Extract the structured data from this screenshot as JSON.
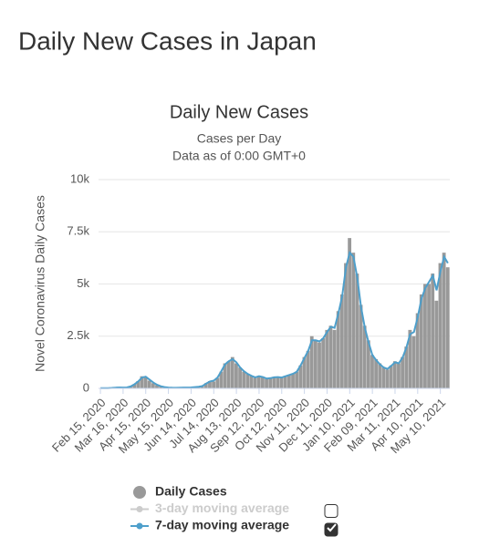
{
  "page_title": "Daily New Cases in Japan",
  "chart_data": {
    "type": "bar",
    "title": "Daily New Cases",
    "subtitle": [
      "Cases per Day",
      "Data as of 0:00 GMT+0"
    ],
    "y_label": "Novel Coronavirus Daily Cases",
    "categories": [
      "Feb 15, 2020",
      null,
      null,
      null,
      null,
      null,
      "Mar 16, 2020",
      null,
      null,
      null,
      null,
      null,
      "Apr 15, 2020",
      null,
      null,
      null,
      null,
      null,
      "May 15, 2020",
      null,
      null,
      null,
      null,
      null,
      "Jun 14, 2020",
      null,
      null,
      null,
      null,
      null,
      "Jul 14, 2020",
      null,
      null,
      null,
      null,
      null,
      "Aug 13, 2020",
      null,
      null,
      null,
      null,
      null,
      "Sep 12, 2020",
      null,
      null,
      null,
      null,
      null,
      "Oct 12, 2020",
      null,
      null,
      null,
      null,
      null,
      "Nov 11, 2020",
      null,
      null,
      null,
      null,
      null,
      "Dec 11, 2020",
      null,
      null,
      null,
      null,
      null,
      "Jan 10, 2021",
      null,
      null,
      null,
      null,
      null,
      "Feb 09, 2021",
      null,
      null,
      null,
      null,
      null,
      "Mar 11, 2021",
      null,
      null,
      null,
      null,
      null,
      "Apr 10, 2021",
      null,
      null,
      null,
      null,
      null,
      "May 10, 2021",
      null,
      null
    ],
    "series": [
      {
        "name": "Daily Cases",
        "color": "#999999",
        "kind": "bar",
        "visible": true,
        "values": [
          10,
          15,
          15,
          20,
          40,
          50,
          30,
          40,
          100,
          200,
          350,
          580,
          550,
          370,
          250,
          160,
          100,
          60,
          40,
          30,
          20,
          40,
          40,
          40,
          50,
          60,
          90,
          100,
          250,
          350,
          330,
          500,
          800,
          1200,
          1300,
          1500,
          1200,
          1000,
          800,
          700,
          600,
          500,
          600,
          550,
          450,
          500,
          550,
          550,
          500,
          600,
          650,
          700,
          800,
          1100,
          1500,
          1800,
          2500,
          2300,
          2200,
          2400,
          2800,
          3000,
          2800,
          3700,
          4500,
          6000,
          7200,
          6500,
          5500,
          4000,
          3000,
          2300,
          1600,
          1400,
          1200,
          1000,
          900,
          1100,
          1300,
          1200,
          1500,
          2000,
          2800,
          2500,
          3600,
          4500,
          5000,
          5000,
          5500,
          4200,
          6000,
          6500,
          5800
        ]
      },
      {
        "name": "3-day moving average",
        "color": "#cccccc",
        "kind": "line",
        "visible": false,
        "values": [
          null,
          null,
          null,
          null,
          null,
          null,
          null,
          null,
          null,
          null,
          null,
          null,
          null,
          null,
          null,
          null,
          null,
          null,
          null,
          null,
          null,
          null,
          null,
          null,
          null,
          null,
          null,
          null,
          null,
          null,
          null,
          null,
          null,
          null,
          null,
          null,
          null,
          null,
          null,
          null,
          null,
          null,
          null,
          null,
          null,
          null,
          null,
          null,
          null,
          null,
          null,
          null,
          null,
          null,
          null,
          null,
          null,
          null,
          null,
          null,
          null,
          null,
          null,
          null,
          null,
          null,
          null,
          null,
          null,
          null,
          null,
          null,
          null,
          null,
          null,
          null,
          null,
          null,
          null,
          null,
          null,
          null,
          null,
          null,
          null,
          null,
          null,
          null,
          null,
          null,
          null,
          null,
          null
        ]
      },
      {
        "name": "7-day moving average",
        "color": "#4e9fcb",
        "kind": "line",
        "visible": true,
        "values": [
          10,
          12,
          15,
          20,
          35,
          45,
          40,
          45,
          90,
          190,
          330,
          520,
          560,
          420,
          280,
          170,
          100,
          60,
          40,
          30,
          25,
          35,
          40,
          40,
          45,
          60,
          80,
          110,
          230,
          330,
          370,
          520,
          820,
          1150,
          1300,
          1400,
          1250,
          1000,
          820,
          690,
          600,
          530,
          580,
          540,
          470,
          490,
          530,
          540,
          520,
          580,
          640,
          700,
          800,
          1100,
          1450,
          1800,
          2300,
          2300,
          2250,
          2400,
          2700,
          2950,
          2900,
          3600,
          4400,
          5800,
          6500,
          6300,
          5300,
          3900,
          2900,
          2200,
          1600,
          1350,
          1150,
          1000,
          930,
          1080,
          1250,
          1200,
          1480,
          1950,
          2600,
          2700,
          3400,
          4300,
          4800,
          5100,
          5400,
          4700,
          5600,
          6300,
          6000
        ]
      }
    ],
    "ylim": [
      0,
      10000
    ],
    "yticks": [
      0,
      {
        "value": 2500,
        "label": "2.5k"
      },
      {
        "value": 5000,
        "label": "5k"
      },
      {
        "value": 7500,
        "label": "7.5k"
      },
      {
        "value": 10000,
        "label": "10k"
      }
    ],
    "grid": true
  }
}
